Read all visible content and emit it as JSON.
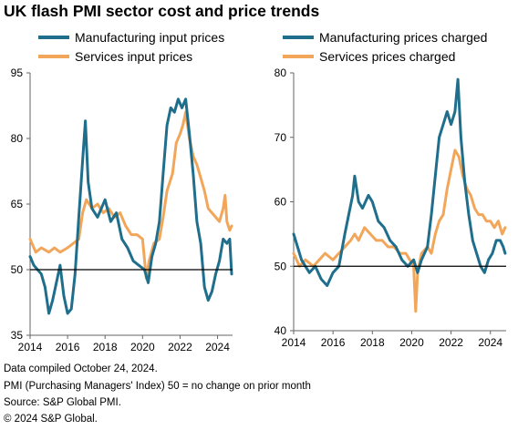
{
  "title": "UK flash PMI sector cost and price trends",
  "footnotes": [
    "Data compiled October 24, 2024.",
    "PMI (Purchasing Managers' Index) 50 = no change on prior month",
    "Source: S&P Global PMI.",
    "© 2024 S&P Global."
  ],
  "colors": {
    "manufacturing": "#1f6e8c",
    "services": "#f2a65a",
    "reference": "#000000"
  },
  "chart_data": [
    {
      "type": "line",
      "title": "",
      "xlabel": "",
      "ylabel": "",
      "xlim": [
        2014,
        2024.8
      ],
      "ylim": [
        35,
        95
      ],
      "yticks": [
        35,
        50,
        65,
        80,
        95
      ],
      "xticks": [
        2014,
        2016,
        2018,
        2020,
        2022,
        2024
      ],
      "reference_line": 50,
      "legend": "top",
      "grid": false,
      "series": [
        {
          "name": "Manufacturing input prices",
          "color_key": "manufacturing",
          "points": [
            [
              2014.0,
              53
            ],
            [
              2014.2,
              51
            ],
            [
              2014.4,
              50
            ],
            [
              2014.6,
              49
            ],
            [
              2014.8,
              46
            ],
            [
              2015.0,
              40
            ],
            [
              2015.2,
              43
            ],
            [
              2015.4,
              47
            ],
            [
              2015.6,
              51
            ],
            [
              2015.8,
              44
            ],
            [
              2016.0,
              40
            ],
            [
              2016.2,
              41
            ],
            [
              2016.4,
              49
            ],
            [
              2016.6,
              62
            ],
            [
              2016.8,
              75
            ],
            [
              2016.95,
              84
            ],
            [
              2017.1,
              70
            ],
            [
              2017.3,
              64
            ],
            [
              2017.6,
              62
            ],
            [
              2018.0,
              66
            ],
            [
              2018.3,
              61
            ],
            [
              2018.6,
              63
            ],
            [
              2018.9,
              57
            ],
            [
              2019.2,
              55
            ],
            [
              2019.5,
              52
            ],
            [
              2019.8,
              51
            ],
            [
              2020.1,
              50
            ],
            [
              2020.3,
              47
            ],
            [
              2020.5,
              53
            ],
            [
              2020.7,
              56
            ],
            [
              2020.9,
              61
            ],
            [
              2021.1,
              72
            ],
            [
              2021.3,
              83
            ],
            [
              2021.5,
              87
            ],
            [
              2021.7,
              86
            ],
            [
              2021.9,
              89
            ],
            [
              2022.1,
              87
            ],
            [
              2022.3,
              89
            ],
            [
              2022.5,
              81
            ],
            [
              2022.7,
              72
            ],
            [
              2022.9,
              61
            ],
            [
              2023.1,
              56
            ],
            [
              2023.3,
              46
            ],
            [
              2023.5,
              43
            ],
            [
              2023.7,
              45
            ],
            [
              2023.9,
              49
            ],
            [
              2024.1,
              52
            ],
            [
              2024.3,
              57
            ],
            [
              2024.5,
              56
            ],
            [
              2024.65,
              57
            ],
            [
              2024.75,
              49
            ]
          ]
        },
        {
          "name": "Services input prices",
          "color_key": "services",
          "points": [
            [
              2014.0,
              57
            ],
            [
              2014.3,
              54
            ],
            [
              2014.6,
              55
            ],
            [
              2015.0,
              54
            ],
            [
              2015.3,
              55
            ],
            [
              2015.6,
              54
            ],
            [
              2016.0,
              55
            ],
            [
              2016.3,
              56
            ],
            [
              2016.6,
              57
            ],
            [
              2016.8,
              63
            ],
            [
              2017.0,
              66
            ],
            [
              2017.3,
              64
            ],
            [
              2017.6,
              65
            ],
            [
              2017.9,
              63
            ],
            [
              2018.2,
              64
            ],
            [
              2018.5,
              62
            ],
            [
              2018.8,
              63
            ],
            [
              2019.1,
              60
            ],
            [
              2019.4,
              58
            ],
            [
              2019.7,
              58
            ],
            [
              2020.0,
              57
            ],
            [
              2020.2,
              48
            ],
            [
              2020.35,
              52
            ],
            [
              2020.6,
              56
            ],
            [
              2020.9,
              57
            ],
            [
              2021.1,
              62
            ],
            [
              2021.3,
              68
            ],
            [
              2021.6,
              72
            ],
            [
              2021.8,
              79
            ],
            [
              2022.0,
              81
            ],
            [
              2022.15,
              83
            ],
            [
              2022.3,
              86
            ],
            [
              2022.5,
              80
            ],
            [
              2022.7,
              76
            ],
            [
              2022.9,
              74
            ],
            [
              2023.1,
              71
            ],
            [
              2023.3,
              68
            ],
            [
              2023.5,
              64
            ],
            [
              2023.7,
              63
            ],
            [
              2023.9,
              62
            ],
            [
              2024.1,
              61
            ],
            [
              2024.3,
              64
            ],
            [
              2024.4,
              67
            ],
            [
              2024.5,
              61
            ],
            [
              2024.65,
              59
            ],
            [
              2024.75,
              60
            ]
          ]
        }
      ]
    },
    {
      "type": "line",
      "title": "",
      "xlabel": "",
      "ylabel": "",
      "xlim": [
        2014,
        2024.8
      ],
      "ylim": [
        40,
        80
      ],
      "yticks": [
        40,
        50,
        60,
        70,
        80
      ],
      "xticks": [
        2014,
        2016,
        2018,
        2020,
        2022,
        2024
      ],
      "reference_line": 50,
      "legend": "top",
      "grid": false,
      "series": [
        {
          "name": "Manufacturing prices charged",
          "color_key": "manufacturing",
          "points": [
            [
              2014.0,
              55
            ],
            [
              2014.2,
              53
            ],
            [
              2014.4,
              51
            ],
            [
              2014.6,
              50
            ],
            [
              2014.8,
              49
            ],
            [
              2015.1,
              50
            ],
            [
              2015.4,
              48
            ],
            [
              2015.7,
              47
            ],
            [
              2016.0,
              49
            ],
            [
              2016.3,
              50
            ],
            [
              2016.6,
              55
            ],
            [
              2016.8,
              58
            ],
            [
              2017.0,
              61
            ],
            [
              2017.1,
              64
            ],
            [
              2017.3,
              60
            ],
            [
              2017.5,
              59
            ],
            [
              2017.8,
              61
            ],
            [
              2018.0,
              60
            ],
            [
              2018.3,
              57
            ],
            [
              2018.6,
              56
            ],
            [
              2018.9,
              54
            ],
            [
              2019.2,
              53
            ],
            [
              2019.5,
              51
            ],
            [
              2019.8,
              50
            ],
            [
              2020.1,
              51
            ],
            [
              2020.3,
              49
            ],
            [
              2020.5,
              51
            ],
            [
              2020.8,
              53
            ],
            [
              2021.0,
              58
            ],
            [
              2021.2,
              64
            ],
            [
              2021.4,
              70
            ],
            [
              2021.6,
              72
            ],
            [
              2021.8,
              74
            ],
            [
              2022.0,
              72
            ],
            [
              2022.2,
              74
            ],
            [
              2022.35,
              79
            ],
            [
              2022.5,
              70
            ],
            [
              2022.7,
              63
            ],
            [
              2022.9,
              58
            ],
            [
              2023.1,
              54
            ],
            [
              2023.3,
              52
            ],
            [
              2023.5,
              50
            ],
            [
              2023.7,
              49
            ],
            [
              2023.9,
              51
            ],
            [
              2024.1,
              52
            ],
            [
              2024.3,
              54
            ],
            [
              2024.5,
              54
            ],
            [
              2024.65,
              53
            ],
            [
              2024.75,
              52
            ]
          ]
        },
        {
          "name": "Services prices charged",
          "color_key": "services",
          "points": [
            [
              2014.0,
              52
            ],
            [
              2014.3,
              50
            ],
            [
              2014.6,
              51
            ],
            [
              2015.0,
              50
            ],
            [
              2015.3,
              51
            ],
            [
              2015.6,
              52
            ],
            [
              2016.0,
              51
            ],
            [
              2016.3,
              52
            ],
            [
              2016.6,
              53
            ],
            [
              2016.9,
              54
            ],
            [
              2017.1,
              55
            ],
            [
              2017.3,
              54
            ],
            [
              2017.6,
              56
            ],
            [
              2017.9,
              55
            ],
            [
              2018.2,
              54
            ],
            [
              2018.5,
              54
            ],
            [
              2018.8,
              53
            ],
            [
              2019.1,
              53
            ],
            [
              2019.4,
              52
            ],
            [
              2019.7,
              52
            ],
            [
              2019.9,
              51
            ],
            [
              2020.1,
              50
            ],
            [
              2020.2,
              43
            ],
            [
              2020.3,
              49
            ],
            [
              2020.5,
              52
            ],
            [
              2020.8,
              53
            ],
            [
              2021.0,
              52
            ],
            [
              2021.2,
              55
            ],
            [
              2021.4,
              57
            ],
            [
              2021.6,
              58
            ],
            [
              2021.8,
              62
            ],
            [
              2022.0,
              65
            ],
            [
              2022.2,
              68
            ],
            [
              2022.4,
              67
            ],
            [
              2022.6,
              64
            ],
            [
              2022.8,
              62
            ],
            [
              2023.0,
              61
            ],
            [
              2023.2,
              59
            ],
            [
              2023.4,
              58
            ],
            [
              2023.6,
              58
            ],
            [
              2023.8,
              57
            ],
            [
              2024.0,
              57
            ],
            [
              2024.2,
              56
            ],
            [
              2024.4,
              57
            ],
            [
              2024.6,
              55
            ],
            [
              2024.75,
              56
            ]
          ]
        }
      ]
    }
  ]
}
